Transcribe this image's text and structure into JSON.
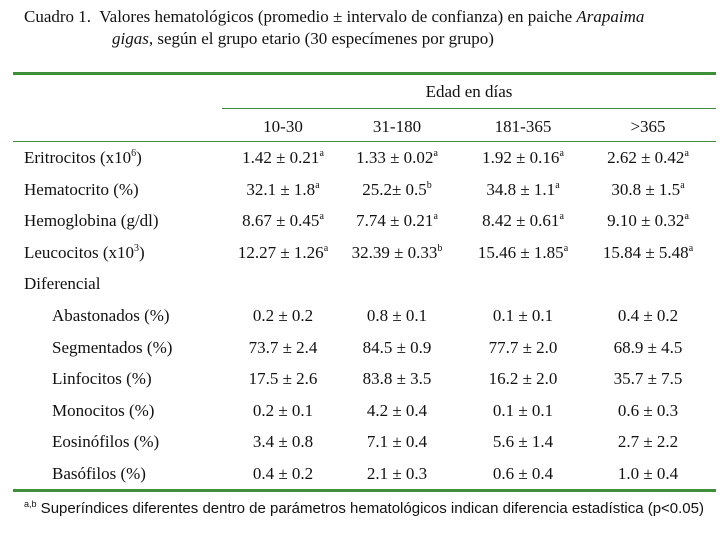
{
  "caption": {
    "prefix": "Cuadro 1.",
    "text_main": "Valores hematológicos (promedio ± intervalo de confianza) en paiche ",
    "species_part1": "Arapaima",
    "species_part2": "gigas",
    "text_rest": ", según el grupo etario (30 especímenes por grupo)"
  },
  "table": {
    "group_header": "Edad en días",
    "columns": [
      "10-30",
      "31-180",
      "181-365",
      ">365"
    ],
    "rows": [
      {
        "label": "Eritrocitos (x10",
        "label_sup": "6",
        "label_suffix": ")",
        "indent": false,
        "cells": [
          {
            "v": "1.42 ± 0.21",
            "s": "a"
          },
          {
            "v": "1.33 ± 0.02",
            "s": "a"
          },
          {
            "v": "1.92 ± 0.16",
            "s": "a"
          },
          {
            "v": "2.62 ± 0.42",
            "s": "a"
          }
        ]
      },
      {
        "label": "Hematocrito (%)",
        "label_sup": "",
        "label_suffix": "",
        "indent": false,
        "cells": [
          {
            "v": "32.1 ± 1.8",
            "s": "a"
          },
          {
            "v": "25.2± 0.5",
            "s": "b"
          },
          {
            "v": "34.8 ± 1.1",
            "s": "a"
          },
          {
            "v": "30.8 ± 1.5",
            "s": "a"
          }
        ]
      },
      {
        "label": "Hemoglobina (g/dl)",
        "label_sup": "",
        "label_suffix": "",
        "indent": false,
        "cells": [
          {
            "v": "8.67 ± 0.45",
            "s": "a"
          },
          {
            "v": "7.74 ± 0.21",
            "s": "a"
          },
          {
            "v": "8.42 ± 0.61",
            "s": "a"
          },
          {
            "v": "9.10 ± 0.32",
            "s": "a"
          }
        ]
      },
      {
        "label": "Leucocitos (x10",
        "label_sup": "3",
        "label_suffix": ")",
        "indent": false,
        "cells": [
          {
            "v": "12.27 ± 1.26",
            "s": "a"
          },
          {
            "v": "32.39 ± 0.33",
            "s": "b"
          },
          {
            "v": "15.46 ± 1.85",
            "s": "a"
          },
          {
            "v": "15.84 ± 5.48",
            "s": "a"
          }
        ]
      },
      {
        "label": "Diferencial",
        "label_sup": "",
        "label_suffix": "",
        "indent": false,
        "cells": []
      },
      {
        "label": "Abastonados (%)",
        "label_sup": "",
        "label_suffix": "",
        "indent": true,
        "cells": [
          {
            "v": "0.2 ± 0.2",
            "s": ""
          },
          {
            "v": "0.8 ± 0.1",
            "s": ""
          },
          {
            "v": "0.1 ± 0.1",
            "s": ""
          },
          {
            "v": "0.4 ± 0.2",
            "s": ""
          }
        ]
      },
      {
        "label": "Segmentados (%)",
        "label_sup": "",
        "label_suffix": "",
        "indent": true,
        "cells": [
          {
            "v": "73.7 ± 2.4",
            "s": ""
          },
          {
            "v": "84.5 ± 0.9",
            "s": ""
          },
          {
            "v": "77.7 ± 2.0",
            "s": ""
          },
          {
            "v": "68.9 ± 4.5",
            "s": ""
          }
        ]
      },
      {
        "label": "Linfocitos (%)",
        "label_sup": "",
        "label_suffix": "",
        "indent": true,
        "cells": [
          {
            "v": "17.5 ± 2.6",
            "s": ""
          },
          {
            "v": "83.8 ± 3.5",
            "s": ""
          },
          {
            "v": "16.2 ± 2.0",
            "s": ""
          },
          {
            "v": "35.7 ± 7.5",
            "s": ""
          }
        ]
      },
      {
        "label": "Monocitos (%)",
        "label_sup": "",
        "label_suffix": "",
        "indent": true,
        "cells": [
          {
            "v": "0.2 ± 0.1",
            "s": ""
          },
          {
            "v": "4.2 ± 0.4",
            "s": ""
          },
          {
            "v": "0.1 ± 0.1",
            "s": ""
          },
          {
            "v": "0.6 ± 0.3",
            "s": ""
          }
        ]
      },
      {
        "label": "Eosinófilos (%)",
        "label_sup": "",
        "label_suffix": "",
        "indent": true,
        "cells": [
          {
            "v": "3.4 ± 0.8",
            "s": ""
          },
          {
            "v": "7.1 ± 0.4",
            "s": ""
          },
          {
            "v": "5.6 ± 1.4",
            "s": ""
          },
          {
            "v": "2.7 ± 2.2",
            "s": ""
          }
        ]
      },
      {
        "label": "Basófilos (%)",
        "label_sup": "",
        "label_suffix": "",
        "indent": true,
        "cells": [
          {
            "v": "0.4 ± 0.2",
            "s": ""
          },
          {
            "v": "2.1 ± 0.3",
            "s": ""
          },
          {
            "v": "0.6 ± 0.4",
            "s": ""
          },
          {
            "v": "1.0 ± 0.4",
            "s": ""
          }
        ]
      }
    ]
  },
  "footnote": {
    "sup": "a,b",
    "text": " Superíndices diferentes dentro de parámetros hematológicos indican diferencia estadística (p<0.05)"
  },
  "colors": {
    "rule": "#3d8f3a",
    "text": "#111111"
  }
}
